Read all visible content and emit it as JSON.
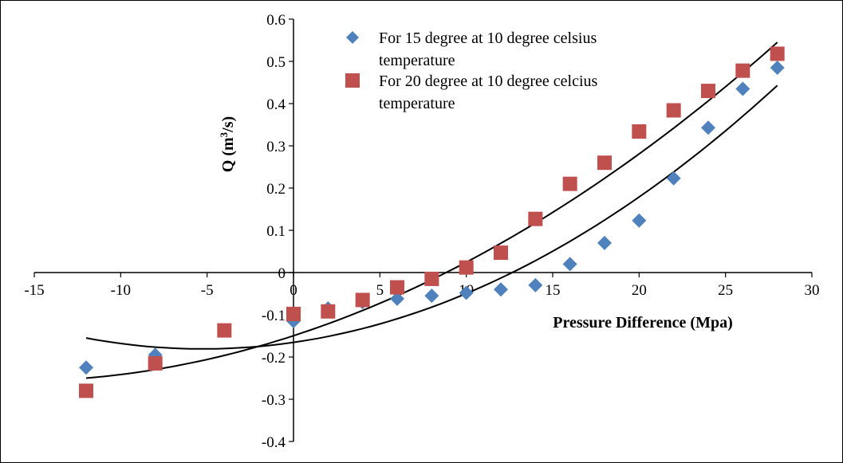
{
  "chart_data": {
    "type": "scatter",
    "xlabel": "Pressure Difference (Mpa)",
    "ylabel_main": "Q (m",
    "ylabel_sup": "3",
    "ylabel_tail": "/s)",
    "xlim": [
      -15,
      30
    ],
    "ylim": [
      -0.4,
      0.6
    ],
    "x_ticks": [
      -15,
      -10,
      -5,
      0,
      5,
      10,
      15,
      20,
      25,
      30
    ],
    "y_ticks": [
      -0.4,
      -0.3,
      -0.2,
      -0.1,
      0,
      0.1,
      0.2,
      0.3,
      0.4,
      0.5,
      0.6
    ],
    "grid": false,
    "legend_position": "top-center",
    "series": [
      {
        "name": "For 15 degree at 10 degree celsius temperature",
        "legend_line1": "For 15 degree at 10 degree celsius",
        "legend_line2": "temperature",
        "marker": "diamond",
        "color": "#4f81bd",
        "x": [
          -12,
          -8,
          0,
          2,
          4,
          6,
          8,
          10,
          12,
          14,
          16,
          18,
          20,
          22,
          24,
          26,
          28
        ],
        "y": [
          -0.225,
          -0.195,
          -0.115,
          -0.085,
          -0.07,
          -0.062,
          -0.055,
          -0.048,
          -0.04,
          -0.03,
          0.02,
          0.07,
          0.123,
          0.223,
          0.343,
          0.435,
          0.485
        ],
        "trendline": {
          "type": "polynomial",
          "x_start": -12,
          "x_end": 28,
          "y_start": -0.155,
          "y_min_x": -3,
          "y_min": -0.178,
          "y_end": 0.443
        }
      },
      {
        "name": "For 20 degree at 10 degree celcius temperature",
        "legend_line1": "For 20 degree at 10 degree celcius",
        "legend_line2": "temperature",
        "marker": "square",
        "color": "#c0504d",
        "x": [
          -12,
          -8,
          -4,
          0,
          2,
          4,
          6,
          8,
          10,
          12,
          14,
          16,
          18,
          20,
          22,
          24,
          26,
          28
        ],
        "y": [
          -0.28,
          -0.215,
          -0.137,
          -0.098,
          -0.092,
          -0.065,
          -0.035,
          -0.015,
          0.012,
          0.047,
          0.127,
          0.21,
          0.26,
          0.334,
          0.384,
          0.43,
          0.478,
          0.518
        ],
        "trendline": {
          "type": "polynomial",
          "x_start": -12,
          "x_end": 28,
          "y_start": -0.25,
          "y_end": 0.545
        }
      }
    ]
  }
}
